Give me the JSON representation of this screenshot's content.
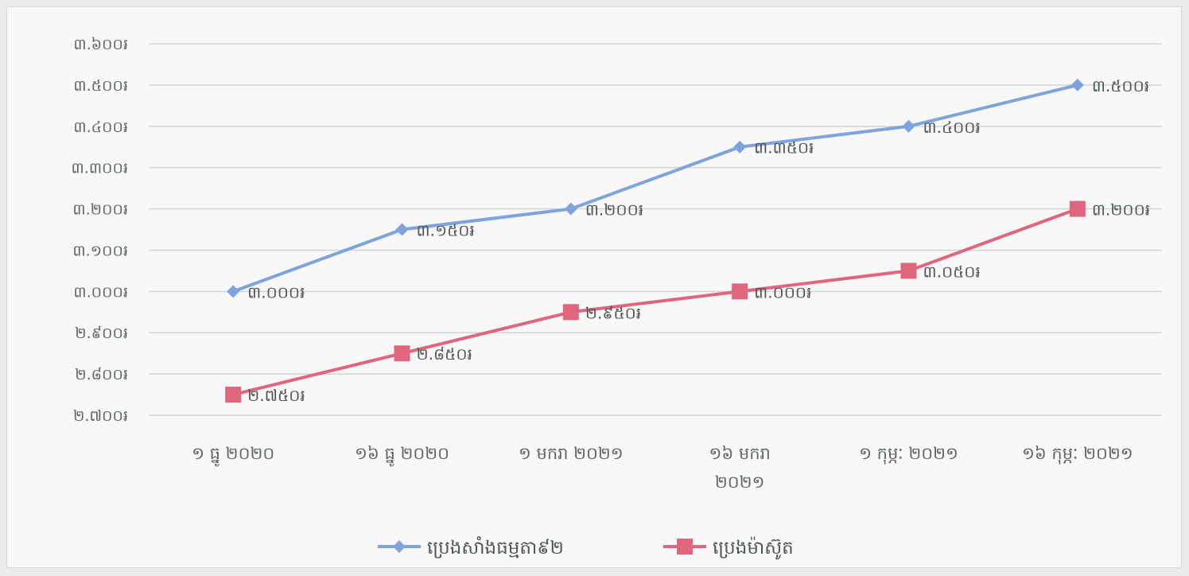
{
  "chart_data": {
    "type": "line",
    "title": "",
    "xlabel": "",
    "ylabel": "",
    "categories": [
      "១ ធ្នូ ២០២០",
      "១៦ ធ្នូ ២០២០",
      "១ មករា ២០២១",
      "១៦ មករា ២០២១",
      "១ កុម្ភៈ ២០២១",
      "១៦ កុម្ភៈ ២០២១"
    ],
    "category_lines": [
      [
        "១ ធ្នូ ២០២០"
      ],
      [
        "១៦ ធ្នូ ២០២០"
      ],
      [
        "១ មករា ២០២១"
      ],
      [
        "១៦ មករា",
        "២០២១"
      ],
      [
        "១ កុម្ភៈ ២០២១"
      ],
      [
        "១៦ កុម្ភៈ ២០២១"
      ]
    ],
    "y_ticks": [
      2700,
      2800,
      2900,
      3000,
      3100,
      3200,
      3300,
      3400,
      3500,
      3600
    ],
    "y_tick_labels": [
      "២.៧០០៛",
      "២.៨០០៛",
      "២.៩០០៛",
      "៣.០០០៛",
      "៣.១០០៛",
      "៣.២០០៛",
      "៣.៣០០៛",
      "៣.៤០០៛",
      "៣.៥០០៛",
      "៣.៦០០៛"
    ],
    "ylim": [
      2700,
      3600
    ],
    "grid": true,
    "legend_position": "bottom",
    "series": [
      {
        "name": "ប្រេងសាំងធម្មតា៩២",
        "marker": "diamond",
        "color": "#7ea3dd",
        "values": [
          3000,
          3150,
          3200,
          3350,
          3400,
          3500
        ],
        "labels": [
          "៣.០០០៛",
          "៣.១៥០៛",
          "៣.២០០៛",
          "៣.៣៥០៛",
          "៣.៤០០៛",
          "៣.៥០០៛"
        ]
      },
      {
        "name": "ប្រេងម៉ាស៊ូត",
        "marker": "square",
        "color": "#e0667e",
        "values": [
          2750,
          2850,
          2950,
          3000,
          3050,
          3200
        ],
        "labels": [
          "២.៧៥០៛",
          "២.៨៥០៛",
          "២.៩៥០៛",
          "៣.០០០៛",
          "៣.០៥០៛",
          "៣.២០០៛"
        ]
      }
    ]
  }
}
